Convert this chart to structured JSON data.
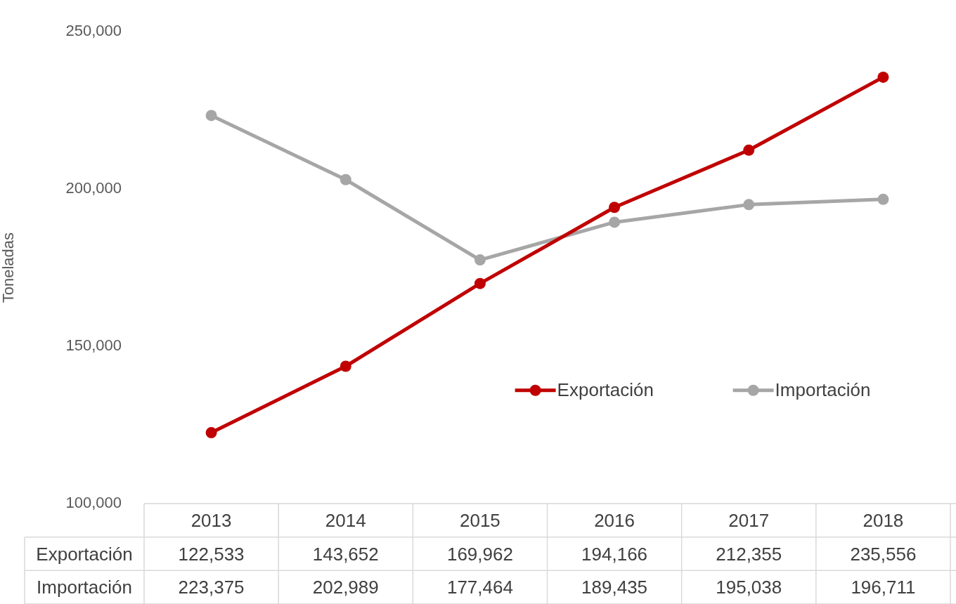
{
  "chart_data": {
    "type": "line",
    "ylabel": "Toneladas",
    "categories": [
      "2013",
      "2014",
      "2015",
      "2016",
      "2017",
      "2018"
    ],
    "series": [
      {
        "name": "Exportación",
        "color": "#c00000",
        "values": [
          122533,
          143652,
          169962,
          194166,
          212355,
          235556
        ],
        "value_labels": [
          "122,533",
          "143,652",
          "169,962",
          "194,166",
          "212,355",
          "235,556"
        ]
      },
      {
        "name": "Importación",
        "color": "#a6a6a6",
        "values": [
          223375,
          202989,
          177464,
          189435,
          195038,
          196711
        ],
        "value_labels": [
          "223,375",
          "202,989",
          "177,464",
          "189,435",
          "195,038",
          "196,711"
        ]
      }
    ],
    "ylim": [
      100000,
      250000
    ],
    "yticks": [
      {
        "value": 100000,
        "label": "100,000"
      },
      {
        "value": 150000,
        "label": "150,000"
      },
      {
        "value": 200000,
        "label": "200,000"
      },
      {
        "value": 250000,
        "label": "250,000"
      }
    ],
    "grid": false,
    "legend": "right",
    "marker": "circle",
    "line_style": "solid"
  }
}
